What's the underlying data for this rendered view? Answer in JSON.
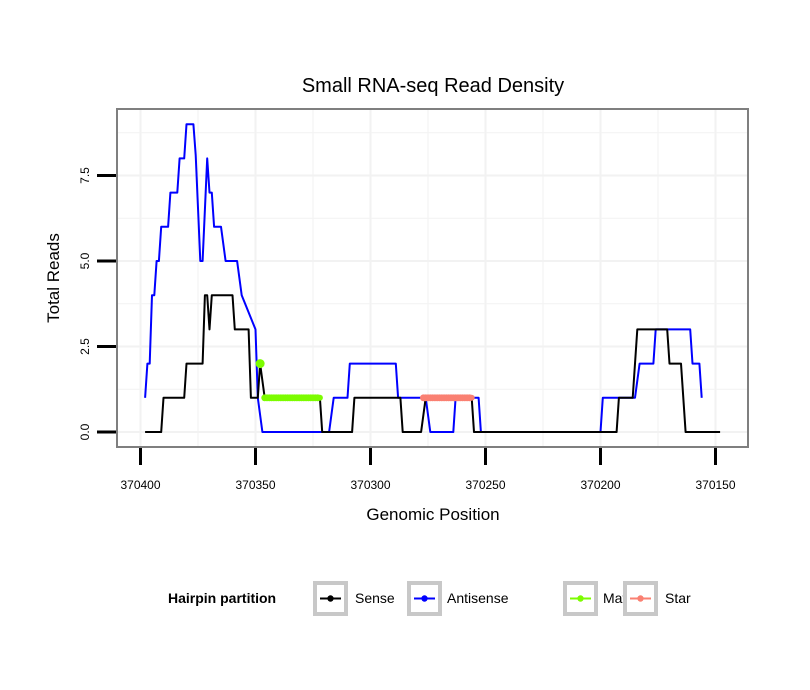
{
  "chart_data": {
    "type": "line",
    "title": "Small RNA-seq Read Density",
    "xlabel": "Genomic Position",
    "ylabel": "Total Reads",
    "x_reversed": true,
    "xlim": [
      370402,
      370147
    ],
    "ylim": [
      -0.3,
      9.3
    ],
    "x_ticks": [
      370400,
      370350,
      370300,
      370250,
      370200,
      370150
    ],
    "x_tick_labels": [
      "370400",
      "370350",
      "370300",
      "370250",
      "370200",
      "370150"
    ],
    "y_ticks": [
      0,
      2.5,
      5,
      7.5
    ],
    "y_tick_labels": [
      "0.0",
      "2.5",
      "5.0",
      "7.5"
    ],
    "grid": true,
    "legend": {
      "title": "Hairpin partition",
      "position": "bottom",
      "entries": [
        {
          "name": "Sense",
          "color": "#000000"
        },
        {
          "name": "Antisense",
          "color": "#0000ff"
        },
        {
          "name": "Mature",
          "color": "#7cfc00"
        },
        {
          "name": "Star",
          "color": "#fa8072"
        }
      ]
    },
    "series": [
      {
        "name": "Antisense",
        "color": "#0000ff",
        "points": [
          [
            370398,
            1
          ],
          [
            370397,
            2
          ],
          [
            370396,
            2
          ],
          [
            370395,
            4
          ],
          [
            370394,
            4
          ],
          [
            370393,
            5
          ],
          [
            370392,
            5
          ],
          [
            370391,
            6
          ],
          [
            370388,
            6
          ],
          [
            370387,
            7
          ],
          [
            370384,
            7
          ],
          [
            370383,
            8
          ],
          [
            370381,
            8
          ],
          [
            370380,
            9
          ],
          [
            370377,
            9
          ],
          [
            370376,
            8.1
          ],
          [
            370374,
            5
          ],
          [
            370373,
            5
          ],
          [
            370371,
            8
          ],
          [
            370370,
            7
          ],
          [
            370369,
            7
          ],
          [
            370368,
            6
          ],
          [
            370365,
            6
          ],
          [
            370363,
            5
          ],
          [
            370358,
            5
          ],
          [
            370356,
            4
          ],
          [
            370350,
            3
          ],
          [
            370349,
            1
          ],
          [
            370347,
            0
          ],
          [
            370318,
            0
          ],
          [
            370316,
            1
          ],
          [
            370310,
            1
          ],
          [
            370309,
            2
          ],
          [
            370289,
            2
          ],
          [
            370288,
            1
          ],
          [
            370276,
            1
          ],
          [
            370274,
            0
          ],
          [
            370264,
            0
          ],
          [
            370263,
            1
          ],
          [
            370253,
            1
          ],
          [
            370252,
            0
          ],
          [
            370200,
            0
          ],
          [
            370199,
            1
          ],
          [
            370185,
            1
          ],
          [
            370183,
            2
          ],
          [
            370177,
            2
          ],
          [
            370176,
            3
          ],
          [
            370161,
            3
          ],
          [
            370160,
            2
          ],
          [
            370157,
            2
          ],
          [
            370156,
            1
          ]
        ]
      },
      {
        "name": "Sense",
        "color": "#000000",
        "points": [
          [
            370398,
            0
          ],
          [
            370391,
            0
          ],
          [
            370390,
            1
          ],
          [
            370381,
            1
          ],
          [
            370380,
            2
          ],
          [
            370373,
            2
          ],
          [
            370372,
            4
          ],
          [
            370371,
            4
          ],
          [
            370370,
            3
          ],
          [
            370369,
            4
          ],
          [
            370360,
            4
          ],
          [
            370359,
            3
          ],
          [
            370353,
            3
          ],
          [
            370352,
            1
          ],
          [
            370349,
            1
          ],
          [
            370348,
            2
          ],
          [
            370346,
            1
          ],
          [
            370322,
            1
          ],
          [
            370321,
            0
          ],
          [
            370308,
            0
          ],
          [
            370307,
            1
          ],
          [
            370287,
            1
          ],
          [
            370286,
            0
          ],
          [
            370278,
            0
          ],
          [
            370276,
            1
          ],
          [
            370256,
            1
          ],
          [
            370255,
            0
          ],
          [
            370193,
            0
          ],
          [
            370192,
            1
          ],
          [
            370186,
            1
          ],
          [
            370184,
            3
          ],
          [
            370171,
            3
          ],
          [
            370170,
            2
          ],
          [
            370165,
            2
          ],
          [
            370163,
            0
          ],
          [
            370148,
            0
          ]
        ]
      },
      {
        "name": "Mature",
        "color": "#7cfc00",
        "points": [
          [
            370348,
            2
          ]
        ],
        "segments": [
          [
            [
              370346,
              1
            ],
            [
              370322,
              1
            ]
          ]
        ]
      },
      {
        "name": "Star",
        "color": "#fa8072",
        "segments": [
          [
            [
              370277,
              1
            ],
            [
              370256,
              1
            ]
          ]
        ]
      }
    ]
  }
}
